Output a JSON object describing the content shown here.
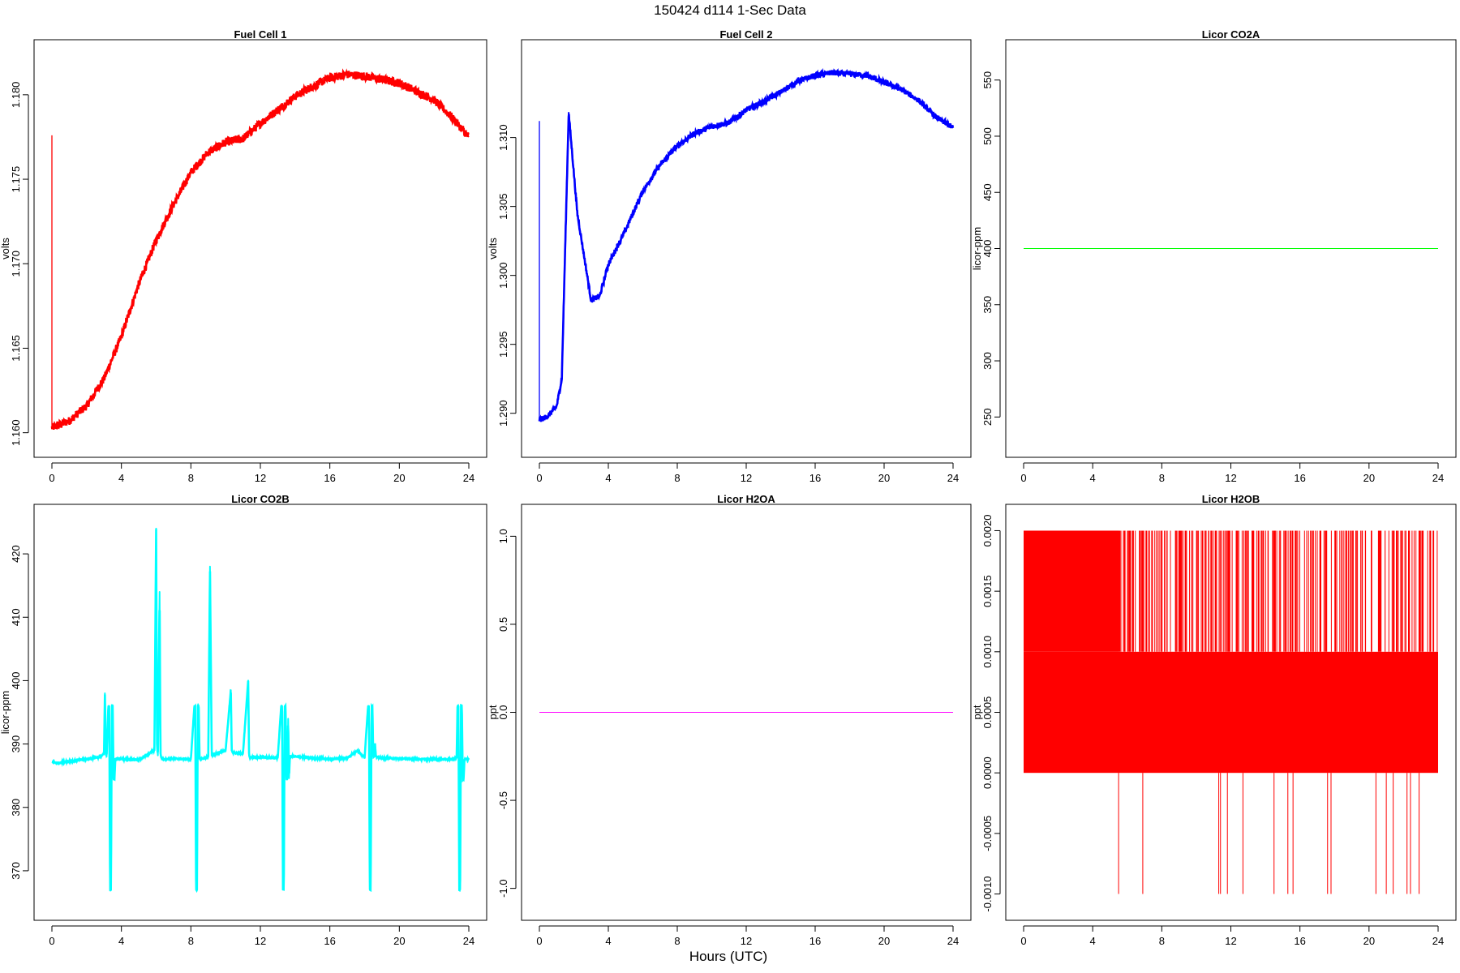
{
  "page": {
    "title": "150424   d114   1-Sec Data",
    "xlabel": "Hours (UTC)"
  },
  "chart_data": [
    {
      "type": "line",
      "title": "Fuel Cell 1",
      "ylabel": "volts",
      "color": "#ff0000",
      "xlim": [
        0,
        24
      ],
      "ylim": [
        1.1596,
        1.1822
      ],
      "xticks": [
        0,
        4,
        8,
        12,
        16,
        20,
        24
      ],
      "yticks": [
        "1.160",
        "1.165",
        "1.170",
        "1.175",
        "1.180"
      ],
      "noise": 0.00025,
      "initial_spike": [
        1.1776,
        1.1603
      ],
      "series": [
        {
          "x": [
            0,
            1,
            2,
            3,
            4,
            5,
            6,
            7,
            8,
            9,
            10,
            11,
            12,
            13,
            14,
            15,
            16,
            17,
            18,
            19,
            20,
            21,
            22,
            23,
            24
          ],
          "y": [
            1.1603,
            1.1607,
            1.1616,
            1.1632,
            1.1657,
            1.1688,
            1.1714,
            1.1735,
            1.1754,
            1.1766,
            1.1772,
            1.1774,
            1.1783,
            1.1791,
            1.1799,
            1.1805,
            1.181,
            1.1812,
            1.1811,
            1.1809,
            1.1807,
            1.1802,
            1.1797,
            1.1787,
            1.1775
          ]
        }
      ]
    },
    {
      "type": "line",
      "title": "Fuel Cell 2",
      "ylabel": "volts",
      "color": "#0000ff",
      "xlim": [
        0,
        24
      ],
      "ylim": [
        1.2881,
        1.3158
      ],
      "xticks": [
        0,
        4,
        8,
        12,
        16,
        20,
        24
      ],
      "yticks": [
        "1.290",
        "1.295",
        "1.300",
        "1.305",
        "1.310"
      ],
      "noise": 0.0002,
      "initial_spike": [
        1.3112,
        1.2895
      ],
      "series": [
        {
          "x": [
            0,
            0.5,
            1,
            1.3,
            1.7,
            2.2,
            3,
            3.5,
            4,
            5,
            6,
            7,
            8,
            9,
            10,
            11,
            12,
            13,
            14,
            15,
            16,
            17,
            18,
            19,
            20,
            21,
            22,
            23,
            24
          ],
          "y": [
            1.2895,
            1.2898,
            1.2905,
            1.2925,
            1.3118,
            1.3045,
            1.2982,
            1.2985,
            1.3008,
            1.3033,
            1.3061,
            1.308,
            1.3094,
            1.3103,
            1.3108,
            1.3111,
            1.312,
            1.3126,
            1.3133,
            1.3141,
            1.3145,
            1.3147,
            1.3146,
            1.3145,
            1.314,
            1.3135,
            1.3127,
            1.3115,
            1.3107
          ]
        }
      ]
    },
    {
      "type": "line",
      "title": "Licor CO2A",
      "ylabel": "licor-ppm",
      "color": "#00ff00",
      "xlim": [
        0,
        24
      ],
      "ylim": [
        230,
        570
      ],
      "xticks": [
        0,
        4,
        8,
        12,
        16,
        20,
        24
      ],
      "yticks": [
        "250",
        "300",
        "350",
        "400",
        "450",
        "500",
        "550"
      ],
      "noise": 0,
      "series": [
        {
          "x": [
            0,
            24
          ],
          "y": [
            400,
            400
          ]
        }
      ]
    },
    {
      "type": "line",
      "title": "Licor CO2B",
      "ylabel": "licor-ppm",
      "color": "#00ffff",
      "xlim": [
        0,
        24
      ],
      "ylim": [
        365,
        425
      ],
      "xticks": [
        0,
        4,
        8,
        12,
        16,
        20,
        24
      ],
      "yticks": [
        "370",
        "380",
        "390",
        "400",
        "410",
        "420"
      ],
      "noise": 0.12,
      "series": [
        {
          "x": [
            0,
            0.3,
            1,
            2,
            2.8,
            3.0,
            3.05,
            3.1,
            3.15,
            3.25,
            3.3,
            3.35,
            3.4,
            3.45,
            3.5,
            3.55,
            3.6,
            3.65,
            3.7,
            3.75,
            4,
            5,
            5.9,
            6.0,
            6.05,
            6.1,
            6.2,
            6.25,
            6.3,
            6.4,
            7,
            8,
            8.2,
            8.25,
            8.3,
            8.35,
            8.4,
            8.45,
            8.5,
            8.55,
            8.6,
            8.65,
            8.7,
            9,
            9.1,
            9.2,
            9.5,
            10,
            10.3,
            10.35,
            10.4,
            11,
            11.3,
            11.35,
            11.4,
            12,
            13,
            13.2,
            13.25,
            13.3,
            13.35,
            13.4,
            13.45,
            13.5,
            13.55,
            13.6,
            13.65,
            13.7,
            13.75,
            13.8,
            14,
            15,
            16,
            17,
            17.6,
            18,
            18.2,
            18.25,
            18.3,
            18.35,
            18.4,
            18.45,
            18.5,
            18.55,
            18.6,
            18.65,
            18.7,
            19,
            20,
            21,
            22,
            23,
            23.3,
            23.35,
            23.4,
            23.45,
            23.5,
            23.55,
            23.6,
            23.65,
            23.7,
            23.75,
            23.8,
            23.85,
            24
          ],
          "y": [
            387.2,
            387.0,
            387.3,
            387.6,
            388.0,
            388.5,
            398.0,
            389.0,
            388.0,
            396.0,
            396.0,
            367.0,
            367.0,
            396.0,
            396.0,
            384.4,
            384.4,
            387.6,
            387.6,
            387.7,
            387.6,
            387.5,
            389.0,
            424.0,
            390.0,
            388.2,
            414.0,
            388.5,
            387.8,
            387.6,
            387.7,
            387.6,
            396.0,
            396.0,
            367.0,
            367.0,
            396.0,
            396.0,
            387.7,
            387.7,
            387.7,
            387.7,
            387.7,
            388.0,
            418.0,
            388.2,
            388.5,
            389.0,
            398.5,
            389.0,
            388.6,
            388.5,
            400.0,
            388.2,
            387.9,
            387.9,
            387.8,
            396.0,
            396.0,
            367.0,
            367.0,
            396.0,
            396.0,
            384.4,
            384.4,
            394.0,
            384.6,
            388.0,
            388.0,
            388.1,
            388.0,
            387.8,
            387.6,
            387.8,
            389.0,
            387.8,
            396.0,
            396.0,
            367.0,
            367.0,
            396.0,
            396.0,
            388.0,
            388.0,
            390.0,
            388.1,
            387.9,
            387.8,
            387.7,
            387.6,
            387.6,
            387.6,
            387.8,
            396.0,
            396.0,
            367.0,
            367.0,
            396.0,
            396.0,
            384.4,
            384.4,
            387.6,
            387.6,
            387.6,
            387.6
          ]
        }
      ]
    },
    {
      "type": "line",
      "title": "Licor H2OA",
      "ylabel": "ppt",
      "color": "#ff00ff",
      "xlim": [
        0,
        24
      ],
      "ylim": [
        -1.08,
        1.08
      ],
      "xticks": [
        0,
        4,
        8,
        12,
        16,
        20,
        24
      ],
      "yticks": [
        "-1.0",
        "-0.5",
        "0.0",
        "0.5",
        "1.0"
      ],
      "noise": 0,
      "series": [
        {
          "x": [
            0,
            24
          ],
          "y": [
            0,
            0
          ]
        }
      ]
    },
    {
      "type": "line",
      "title": "Licor H2OB",
      "ylabel": "ppt",
      "color": "#ff0000",
      "xlim": [
        0,
        24
      ],
      "ylim": [
        -0.00107,
        0.00207
      ],
      "xticks": [
        0,
        4,
        8,
        12,
        16,
        20,
        24
      ],
      "yticks": [
        "-0.0010",
        "-0.0005",
        "0.0000",
        "0.0005",
        "0.0010",
        "0.0015",
        "0.0020"
      ],
      "band": [
        0.0,
        0.001
      ],
      "top": 0.002,
      "band_until_full_top": 5.5,
      "series": [
        {
          "name": "",
          "x": [
            5.5,
            6.9,
            11.3,
            11.4,
            11.8,
            12.7,
            14.5,
            15.3,
            15.6,
            17.6,
            17.8,
            20.4,
            21.0,
            21.4,
            22.2,
            22.4,
            22.9
          ],
          "y": [
            -0.001,
            -0.001,
            -0.001,
            -0.001,
            -0.001,
            -0.001,
            -0.001,
            -0.001,
            -0.001,
            -0.001,
            -0.001,
            -0.001,
            -0.001,
            -0.001,
            -0.001,
            -0.001,
            -0.001
          ]
        }
      ]
    }
  ]
}
